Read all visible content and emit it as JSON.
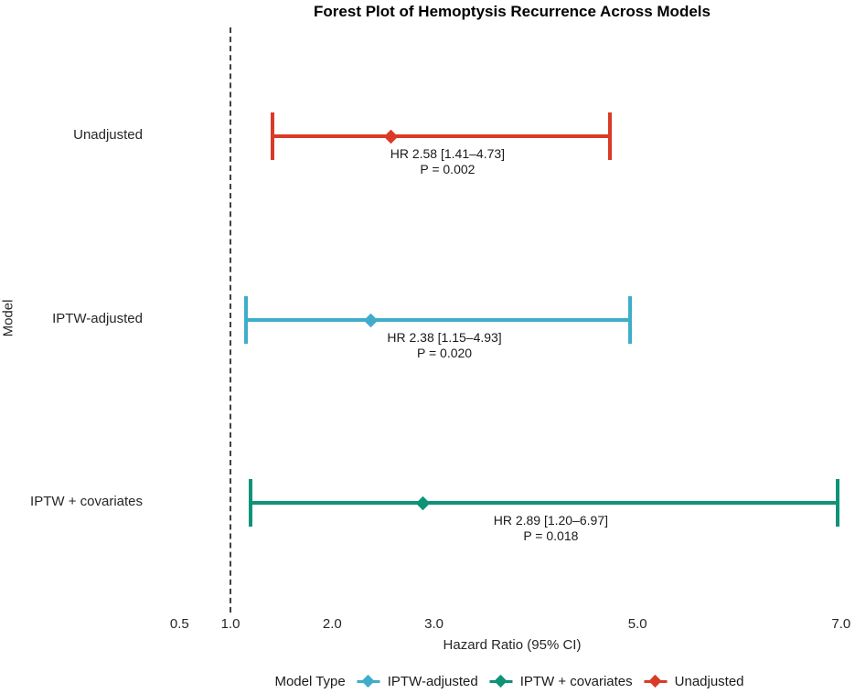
{
  "chart_data": {
    "type": "forest",
    "title": "Forest Plot of Hemoptysis Recurrence Across Models",
    "xlabel": "Hazard Ratio (95% CI)",
    "ylabel": "Model",
    "x_scale": "linear",
    "xlim": [
      0.3,
      7.15
    ],
    "x_ticks": [
      "0.5",
      "1.0",
      "2.0",
      "3.0",
      "5.0",
      "7.0"
    ],
    "x_tick_values": [
      0.5,
      1.0,
      2.0,
      3.0,
      5.0,
      7.0
    ],
    "reference_line": 1.0,
    "grid": "off",
    "background": "#ffffff",
    "rows": [
      {
        "label": "Unadjusted",
        "hr": 2.58,
        "ci_low": 1.41,
        "ci_high": 4.73,
        "p_value": 0.002,
        "hr_text": "HR 2.58 [1.41–4.73]",
        "p_text": "P = 0.002",
        "color": "#d93b27"
      },
      {
        "label": "IPTW-adjusted",
        "hr": 2.38,
        "ci_low": 1.15,
        "ci_high": 4.93,
        "p_value": 0.02,
        "hr_text": "HR 2.38 [1.15–4.93]",
        "p_text": "P = 0.020",
        "color": "#3fadca"
      },
      {
        "label": "IPTW + covariates",
        "hr": 2.89,
        "ci_low": 1.2,
        "ci_high": 6.97,
        "p_value": 0.018,
        "hr_text": "HR 2.89 [1.20–6.97]",
        "p_text": "P = 0.018",
        "color": "#0e9377"
      }
    ],
    "legend": {
      "title": "Model Type",
      "position": "bottom",
      "items": [
        {
          "label": "IPTW-adjusted",
          "color": "#3fadca"
        },
        {
          "label": "IPTW + covariates",
          "color": "#0e9377"
        },
        {
          "label": "Unadjusted",
          "color": "#d93b27"
        }
      ]
    }
  }
}
